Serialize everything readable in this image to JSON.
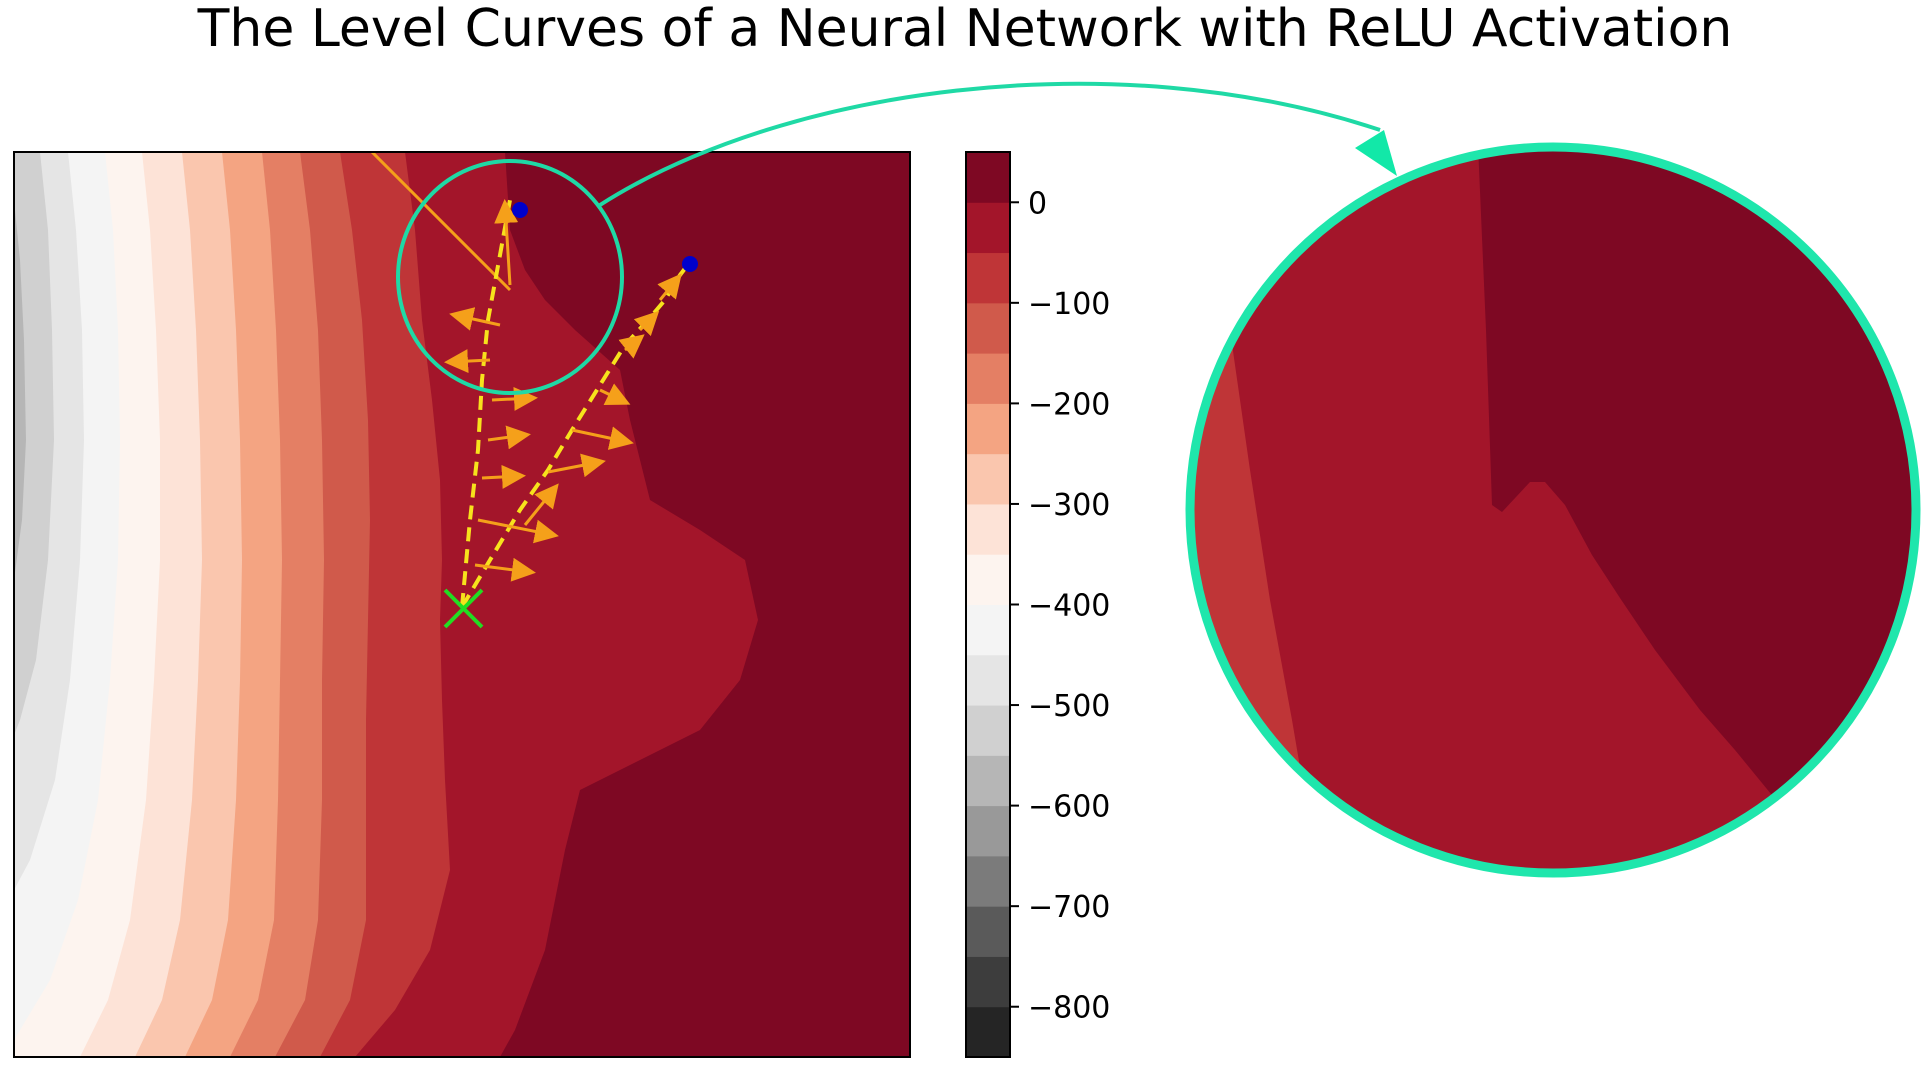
{
  "chart_data": {
    "type": "contour",
    "title": "The Level Curves of a Neural Network with ReLU Activation",
    "colorbar": {
      "levels": [
        -850,
        -800,
        -750,
        -700,
        -650,
        -600,
        -550,
        -500,
        -450,
        -400,
        -350,
        -300,
        -250,
        -200,
        -150,
        -100,
        -50,
        0,
        50
      ],
      "colors": [
        "#252525",
        "#3d3d3d",
        "#5a5a5a",
        "#7b7b7b",
        "#999999",
        "#b6b6b6",
        "#d0d0d0",
        "#e5e5e5",
        "#f4f4f4",
        "#fdf4ef",
        "#fde3d7",
        "#fac6ae",
        "#f4a482",
        "#e47f64",
        "#d05a4b",
        "#bf3537",
        "#a3152a",
        "#7e0823"
      ],
      "ticks": [
        0,
        -100,
        -200,
        -300,
        -400,
        -500,
        -600,
        -700,
        -800
      ],
      "tick_labels": [
        "0",
        "−100",
        "−200",
        "−300",
        "−400",
        "−500",
        "−600",
        "−700",
        "−800"
      ],
      "range": [
        -850,
        50
      ]
    },
    "start_marker": "x-marker",
    "end_markers": [
      "dot-marker",
      "dot-marker"
    ],
    "inset": "zoomed circular view of the highlighted region"
  }
}
